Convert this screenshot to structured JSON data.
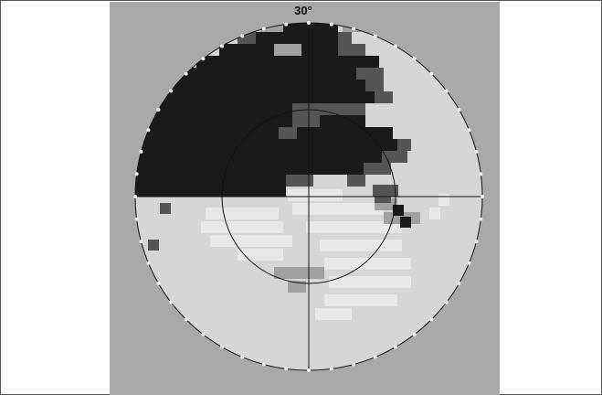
{
  "field": {
    "eccentricity_label": "30°",
    "colors": {
      "background": "#a9a9a9",
      "normal": "#d6d6d6",
      "mild": "#e8e8e8",
      "moderate": "#a0a0a0",
      "severe": "#555555",
      "absolute": "#1a1a1a",
      "axes": "#111111"
    }
  }
}
